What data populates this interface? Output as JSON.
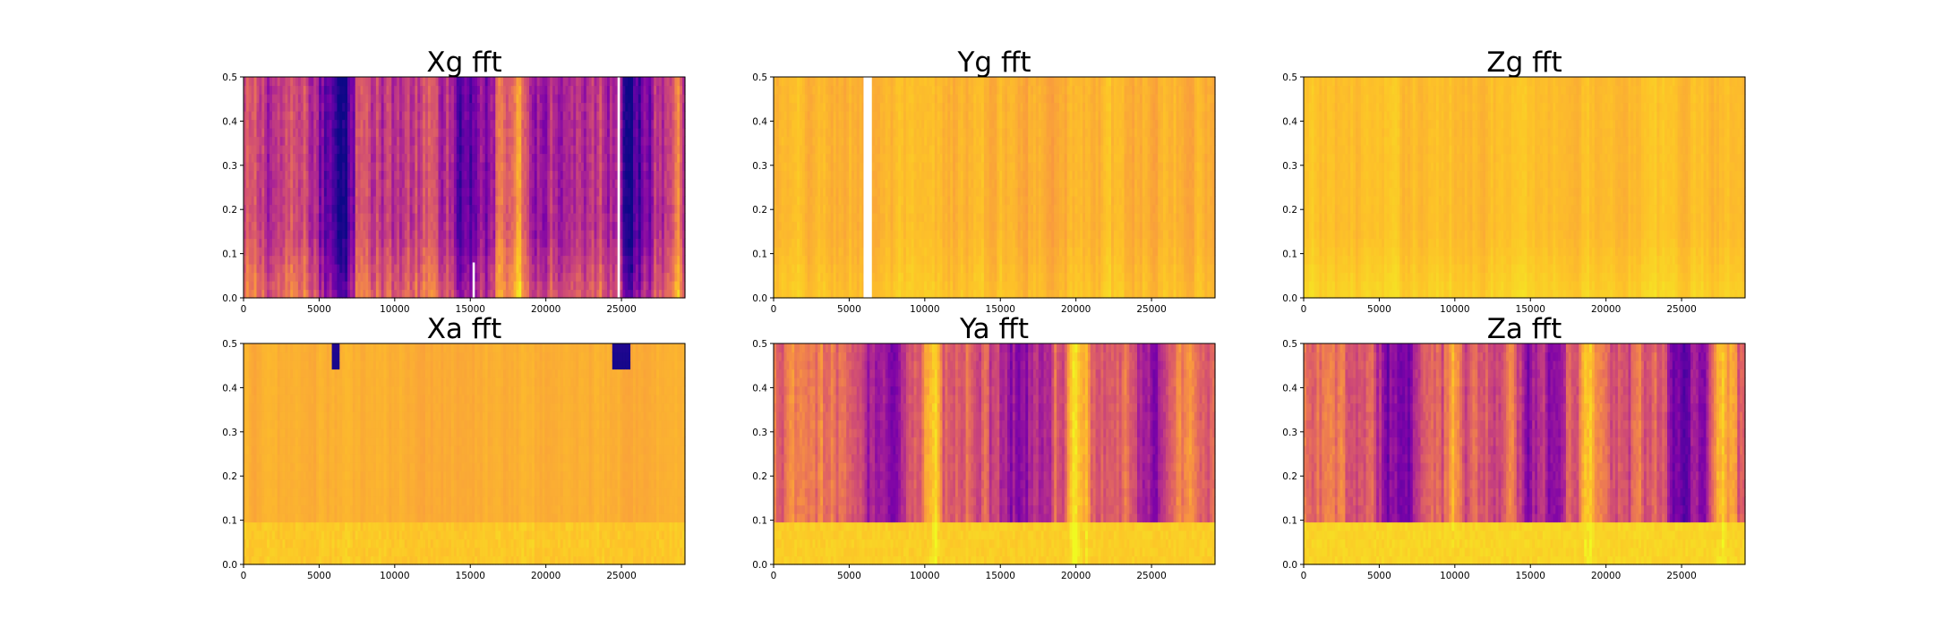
{
  "chart_data": [
    {
      "id": "xg",
      "type": "heatmap",
      "title": "Xg fft",
      "xlim": [
        0,
        29200
      ],
      "ylim": [
        0,
        0.5
      ],
      "xticks": [
        "0",
        "5000",
        "10000",
        "15000",
        "20000",
        "25000"
      ],
      "yticks": [
        "0.0",
        "0.1",
        "0.2",
        "0.3",
        "0.4",
        "0.5"
      ],
      "colormap": "plasma",
      "base_level": 0.45,
      "variation": 0.26,
      "low_freq_boost": 0.16,
      "dark_bands": [
        [
          4900,
          7400
        ],
        [
          13500,
          16200
        ],
        [
          25000,
          27100
        ]
      ],
      "bright_bands": [
        [
          7400,
          8500
        ],
        [
          16600,
          18700
        ],
        [
          27800,
          29000
        ]
      ],
      "gaps": [
        [
          24740,
          24900,
          0.0,
          0.5
        ],
        [
          15150,
          15300,
          0.0,
          0.08
        ]
      ]
    },
    {
      "id": "yg",
      "type": "heatmap",
      "title": "Yg fft",
      "xlim": [
        0,
        29200
      ],
      "ylim": [
        0,
        0.5
      ],
      "xticks": [
        "0",
        "5000",
        "10000",
        "15000",
        "20000",
        "25000"
      ],
      "yticks": [
        "0.0",
        "0.1",
        "0.2",
        "0.3",
        "0.4",
        "0.5"
      ],
      "colormap": "plasma",
      "base_level": 0.83,
      "variation": 0.07,
      "low_freq_boost": 0.04,
      "dark_bands": [],
      "bright_bands": [],
      "gaps": [
        [
          5950,
          6500,
          0.0,
          0.5
        ]
      ]
    },
    {
      "id": "zg",
      "type": "heatmap",
      "title": "Zg fft",
      "xlim": [
        0,
        29200
      ],
      "ylim": [
        0,
        0.5
      ],
      "xticks": [
        "0",
        "5000",
        "10000",
        "15000",
        "20000",
        "25000"
      ],
      "yticks": [
        "0.0",
        "0.1",
        "0.2",
        "0.3",
        "0.4",
        "0.5"
      ],
      "colormap": "plasma",
      "base_level": 0.86,
      "variation": 0.05,
      "low_freq_boost": 0.05,
      "dark_bands": [],
      "bright_bands": [],
      "gaps": []
    },
    {
      "id": "xa",
      "type": "heatmap",
      "title": "Xa fft",
      "xlim": [
        0,
        29200
      ],
      "ylim": [
        0,
        0.5
      ],
      "xticks": [
        "0",
        "5000",
        "10000",
        "15000",
        "20000",
        "25000"
      ],
      "yticks": [
        "0.0",
        "0.1",
        "0.2",
        "0.3",
        "0.4",
        "0.5"
      ],
      "colormap": "plasma",
      "base_level": 0.82,
      "variation": 0.04,
      "low_freq_boost": 0.15,
      "low_freq_cutoff": 0.1,
      "dark_bands": [],
      "bright_bands": [],
      "notches": [
        [
          5900,
          6400,
          0.44
        ],
        [
          24400,
          25600,
          0.45
        ]
      ],
      "gaps": []
    },
    {
      "id": "ya",
      "type": "heatmap",
      "title": "Ya fft",
      "xlim": [
        0,
        29200
      ],
      "ylim": [
        0,
        0.5
      ],
      "xticks": [
        "0",
        "5000",
        "10000",
        "15000",
        "20000",
        "25000"
      ],
      "yticks": [
        "0.0",
        "0.1",
        "0.2",
        "0.3",
        "0.4",
        "0.5"
      ],
      "colormap": "plasma",
      "base_level": 0.62,
      "variation": 0.2,
      "low_freq_boost": 0.2,
      "low_freq_cutoff": 0.1,
      "dark_bands": [
        [
          5200,
          9000
        ],
        [
          14200,
          18500
        ],
        [
          23500,
          26500
        ]
      ],
      "bright_bands": [
        [
          9800,
          11200
        ],
        [
          19200,
          21000
        ]
      ],
      "gaps": []
    },
    {
      "id": "za",
      "type": "heatmap",
      "title": "Za fft",
      "xlim": [
        0,
        29200
      ],
      "ylim": [
        0,
        0.5
      ],
      "xticks": [
        "0",
        "5000",
        "10000",
        "15000",
        "20000",
        "25000"
      ],
      "yticks": [
        "0.0",
        "0.1",
        "0.2",
        "0.3",
        "0.4",
        "0.5"
      ],
      "colormap": "plasma",
      "base_level": 0.58,
      "variation": 0.22,
      "low_freq_boost": 0.24,
      "low_freq_cutoff": 0.1,
      "dark_bands": [
        [
          4800,
          8200
        ],
        [
          14000,
          17300
        ],
        [
          24000,
          26800
        ]
      ],
      "bright_bands": [
        [
          9200,
          10600
        ],
        [
          18200,
          20200
        ],
        [
          27200,
          28600
        ]
      ],
      "gaps": []
    }
  ]
}
